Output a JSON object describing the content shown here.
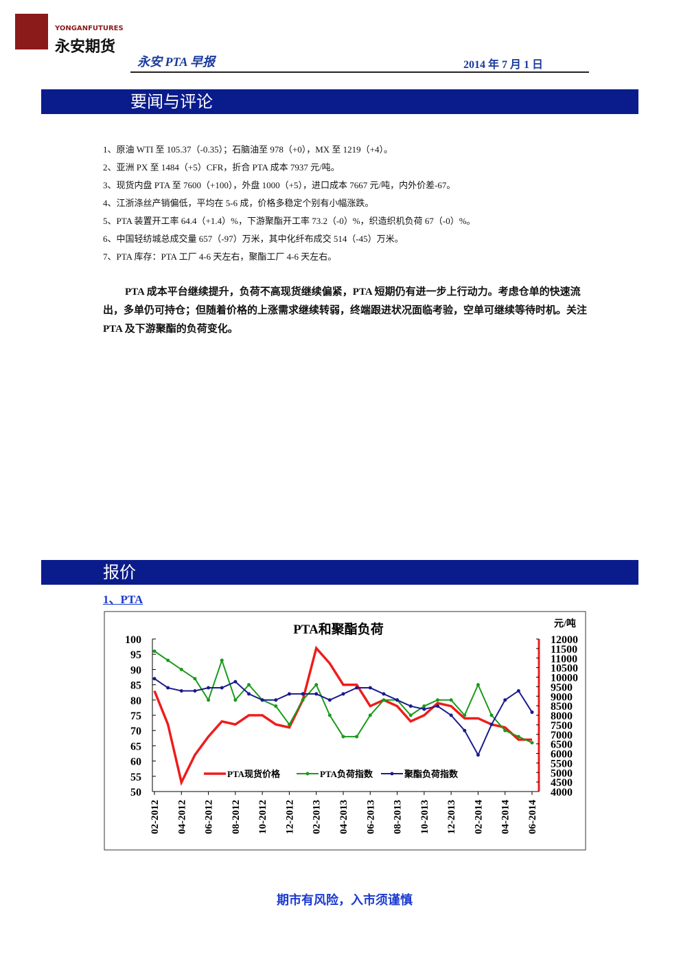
{
  "header": {
    "logo_en": "YONGANFUTURES",
    "logo_cn": "永安期货",
    "report": "永安 PTA 早报",
    "date": "2014 年 7 月 1 日"
  },
  "news": {
    "title": "要闻与评论",
    "items": [
      "1、原油 WTI 至 105.37（-0.35）；石脑油至 978（+0），MX 至 1219（+4）。",
      "2、亚洲 PX 至 1484（+5）CFR，折合 PTA 成本 7937 元/吨。",
      "3、现货内盘 PTA 至 7600（+100），外盘 1000（+5），进口成本 7667 元/吨，内外价差-67。",
      "4、江浙涤丝产销偏低，平均在 5-6 成，价格多稳定个别有小幅涨跌。",
      "5、PTA 装置开工率 64.4（+1.4）%，下游聚酯开工率 73.2（-0）%，织造织机负荷 67（-0）%。",
      "6、中国轻纺城总成交量 657（-97）万米，其中化纤布成交 514（-45）万米。",
      "7、PTA 库存：PTA 工厂 4-6 天左右，聚酯工厂 4-6 天左右。"
    ],
    "comment": "PTA 成本平台继续提升，负荷不高现货继续偏紧，PTA 短期仍有进一步上行动力。考虑仓单的快速流出，多单仍可持仓；但随着价格的上涨需求继续转弱，终端跟进状况面临考验，空单可继续等待时机。关注 PTA 及下游聚酯的负荷变化。"
  },
  "quote": {
    "title": "报价",
    "subtitle": "1、PTA"
  },
  "chart_data": {
    "type": "line",
    "title": "PTA和聚酯负荷",
    "y2_label": "元/吨",
    "categories": [
      "02-2012",
      null,
      "04-2012",
      null,
      "06-2012",
      null,
      "08-2012",
      null,
      "10-2012",
      null,
      "12-2012",
      null,
      "02-2013",
      null,
      "04-2013",
      null,
      "06-2013",
      null,
      "08-2013",
      null,
      "10-2013",
      null,
      "12-2013",
      null,
      "02-2014",
      null,
      "04-2014",
      null,
      "06-2014"
    ],
    "ylim": [
      50,
      100
    ],
    "yticks": [
      50,
      55,
      60,
      65,
      70,
      75,
      80,
      85,
      90,
      95,
      100
    ],
    "y2lim": [
      4000,
      12000
    ],
    "y2ticks": [
      4000,
      4500,
      5000,
      5500,
      6000,
      6500,
      7000,
      7500,
      8000,
      8500,
      9000,
      9500,
      10000,
      10500,
      11000,
      11500,
      12000
    ],
    "series": [
      {
        "name": "PTA现货价格",
        "color": "#ee1c1c",
        "axis": "y2",
        "values": [
          9280,
          7520,
          4480,
          5920,
          6880,
          7680,
          7520,
          8000,
          8000,
          7520,
          7360,
          8800,
          11520,
          10720,
          9600,
          9600,
          8480,
          8800,
          8480,
          7680,
          8000,
          8640,
          8480,
          7840,
          7840,
          7520,
          7360,
          6720,
          6720
        ]
      },
      {
        "name": "PTA负荷指数",
        "color": "#1a9a1a",
        "values": [
          96,
          93,
          90,
          87,
          80,
          93,
          80,
          85,
          80,
          78,
          72,
          80,
          85,
          75,
          68,
          68,
          75,
          80,
          80,
          75,
          78,
          80,
          80,
          75,
          85,
          75,
          70,
          68,
          66
        ]
      },
      {
        "name": "聚酯负荷指数",
        "color": "#1a1a8c",
        "values": [
          87,
          84,
          83,
          83,
          84,
          84,
          86,
          82,
          80,
          80,
          82,
          82,
          82,
          80,
          82,
          84,
          84,
          82,
          80,
          78,
          77,
          78,
          75,
          70,
          62,
          72,
          80,
          83,
          76
        ]
      }
    ]
  },
  "footer": "期市有风险，入市须谨慎"
}
